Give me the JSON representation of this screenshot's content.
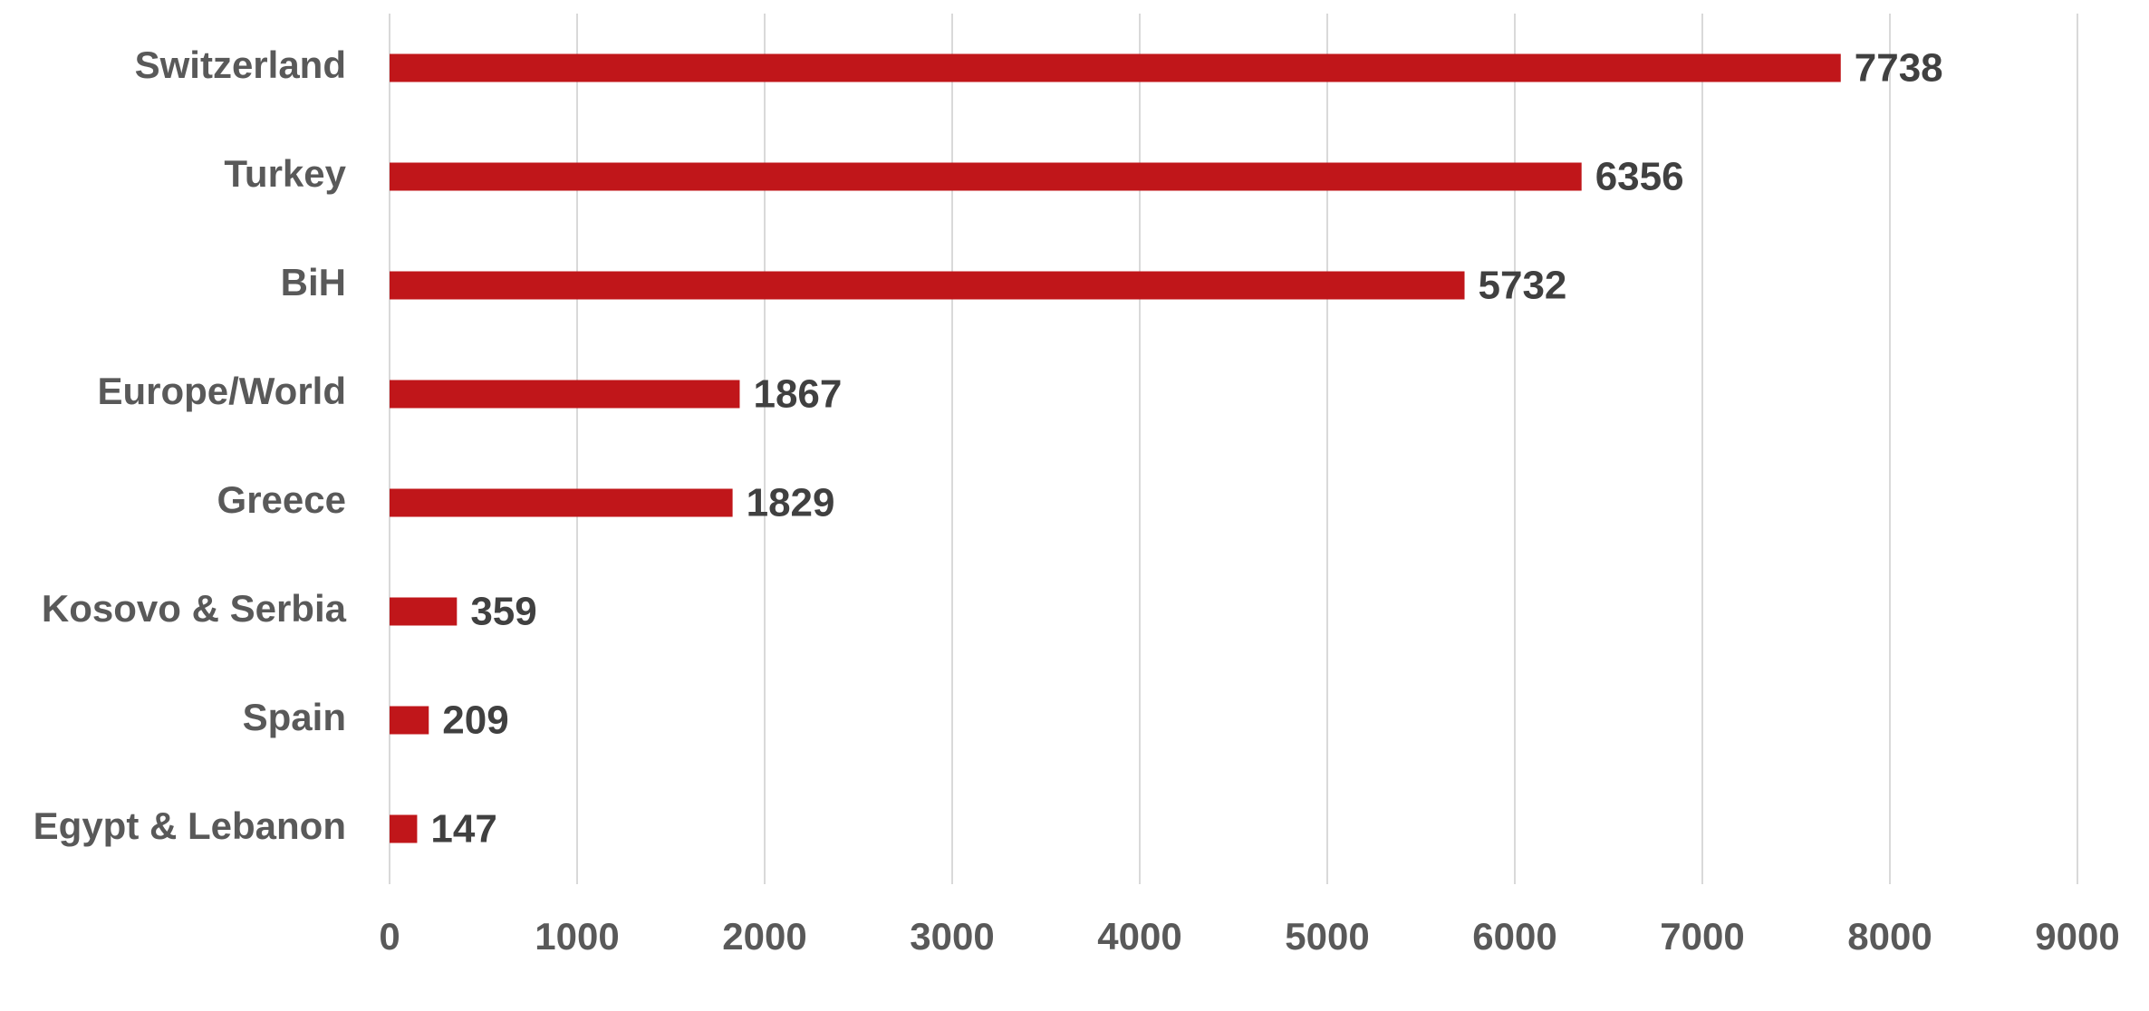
{
  "chart_data": {
    "type": "bar",
    "orientation": "horizontal",
    "categories": [
      "Switzerland",
      "Turkey",
      "BiH",
      "Europe/World",
      "Greece",
      "Kosovo & Serbia",
      "Spain",
      "Egypt & Lebanon"
    ],
    "values": [
      7738,
      6356,
      5732,
      1867,
      1829,
      359,
      209,
      147
    ],
    "color": "#c0161a",
    "xlim": [
      0,
      9000
    ],
    "xticks": [
      0,
      1000,
      2000,
      3000,
      4000,
      5000,
      6000,
      7000,
      8000,
      9000
    ],
    "grid": true
  }
}
